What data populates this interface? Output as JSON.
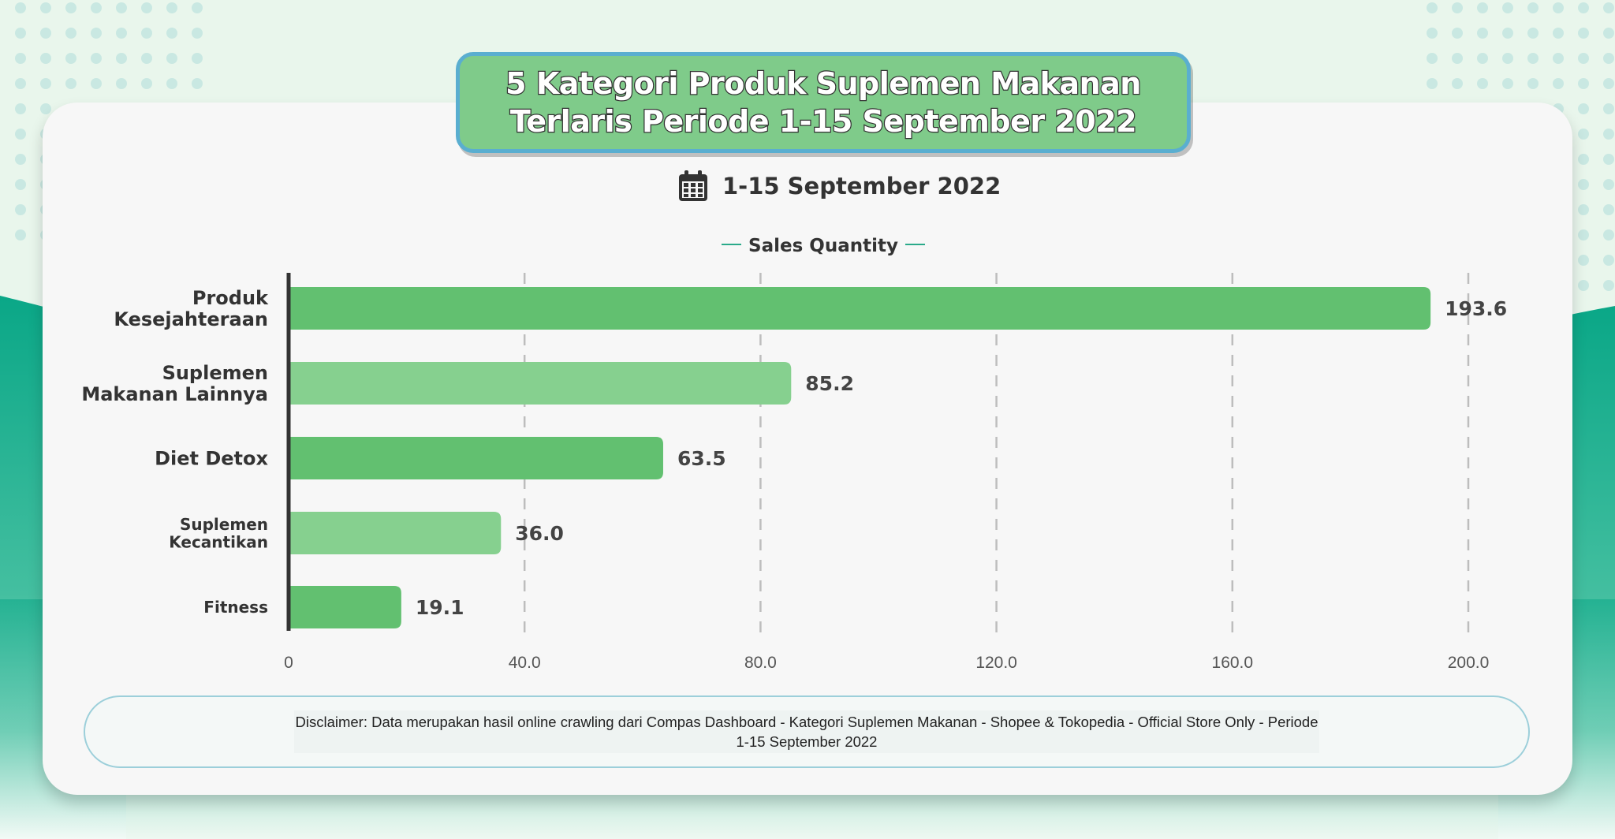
{
  "title": "5 Kategori Produk Suplemen Makanan\nTerlaris Periode 1-15 September 2022",
  "period": "1-15 September 2022",
  "disclaimer": "Disclaimer: Data merupakan hasil online crawling dari Compas Dashboard - Kategori Suplemen Makanan - Shopee & Tokopedia - Official Store Only - Periode 1-15 September 2022",
  "icons": {
    "period": "calendar-icon"
  },
  "colors": {
    "bar_primary": "#62c070",
    "bar_secondary": "#86d08f",
    "accent": "#2aaa8a",
    "text": "#333333"
  },
  "chart_data": {
    "type": "bar",
    "orientation": "horizontal",
    "categories": [
      "Produk\nKesejahteraan",
      "Suplemen\nMakanan Lainnya",
      "Diet Detox",
      "Suplemen\nKecantikan",
      "Fitness"
    ],
    "series": [
      {
        "name": "Sales Quantity",
        "values": [
          193.6,
          85.2,
          63.5,
          36.0,
          19.1
        ]
      }
    ],
    "data_labels": [
      "193.6",
      "85.2",
      "63.5",
      "36.0",
      "19.1"
    ],
    "x_ticks": [
      0,
      40,
      80,
      120,
      160,
      200
    ],
    "x_tick_labels": [
      "0",
      "40.0",
      "80.0",
      "120.0",
      "160.0",
      "200.0"
    ],
    "xlim": [
      0,
      200
    ],
    "grid": "vertical-dashed",
    "legend": "top-center"
  }
}
